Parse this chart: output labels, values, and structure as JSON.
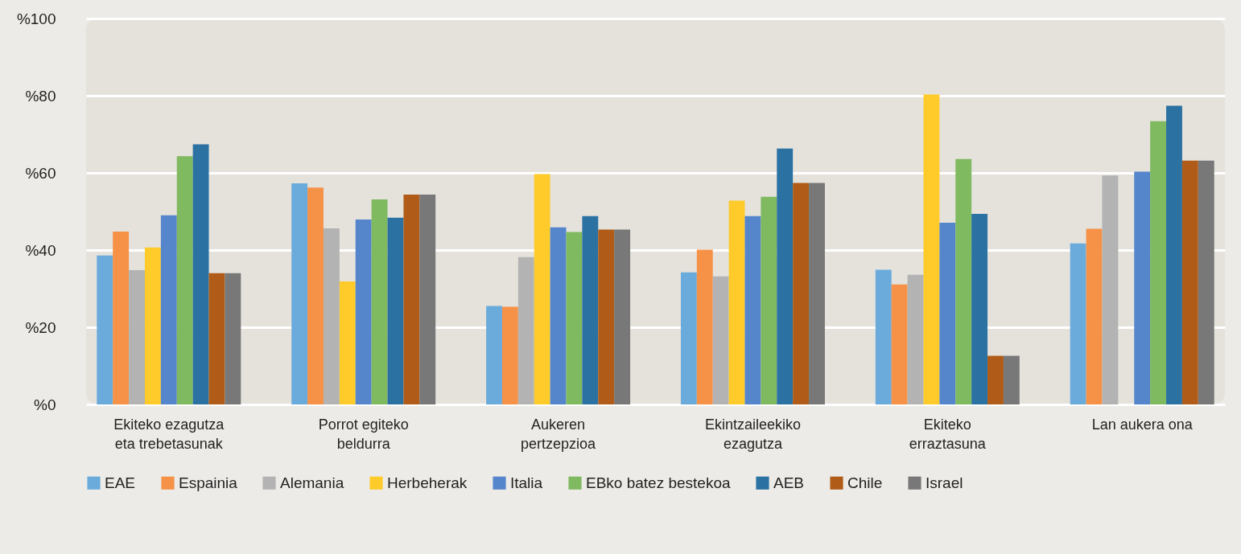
{
  "chart_data": {
    "type": "bar",
    "categories": [
      "Ekiteko ezagutza eta trebetasunak",
      "Porrot egiteko beldurra",
      "Aukeren pertzepzioa",
      "Ekintzaileekiko ezagutza",
      "Ekiteko erraztasuna",
      "Lan aukera ona"
    ],
    "series": [
      {
        "name": "EAE",
        "color": "#6aabdc",
        "values": [
          38.6,
          57.3,
          25.5,
          34.2,
          34.9,
          41.7
        ]
      },
      {
        "name": "Espainia",
        "color": "#f59248",
        "values": [
          44.8,
          56.2,
          25.3,
          40.1,
          31.1,
          45.5
        ]
      },
      {
        "name": "Alemania",
        "color": "#b3b3b3",
        "values": [
          34.8,
          45.6,
          38.2,
          33.2,
          33.6,
          59.3
        ]
      },
      {
        "name": "Herbeherak",
        "color": "#fecb2a",
        "values": [
          40.7,
          31.9,
          59.7,
          52.8,
          80.3,
          null
        ]
      },
      {
        "name": "Italia",
        "color": "#5585cb",
        "values": [
          49.0,
          47.9,
          45.9,
          48.8,
          47.1,
          60.3
        ]
      },
      {
        "name": "EBko batez bestekoa",
        "color": "#7fb960",
        "values": [
          64.3,
          53.1,
          44.7,
          53.8,
          63.6,
          73.4
        ]
      },
      {
        "name": "AEB",
        "color": "#2b71a2",
        "values": [
          67.4,
          48.4,
          48.8,
          66.3,
          49.4,
          77.4
        ]
      },
      {
        "name": "Chile",
        "color": "#b05c18",
        "values": [
          34.0,
          54.4,
          45.3,
          57.4,
          12.6,
          63.2
        ]
      },
      {
        "name": "Israel",
        "color": "#787878",
        "values": [
          34.0,
          54.4,
          45.3,
          57.4,
          12.6,
          63.2
        ]
      }
    ],
    "ylim": [
      0,
      100
    ],
    "yticks": [
      {
        "value": 0,
        "label": "%0"
      },
      {
        "value": 20,
        "label": "%20"
      },
      {
        "value": 40,
        "label": "%40"
      },
      {
        "value": 60,
        "label": "%60"
      },
      {
        "value": 80,
        "label": "%80"
      },
      {
        "value": 100,
        "label": "%100"
      }
    ],
    "grid": "y",
    "legend": "bottom"
  }
}
